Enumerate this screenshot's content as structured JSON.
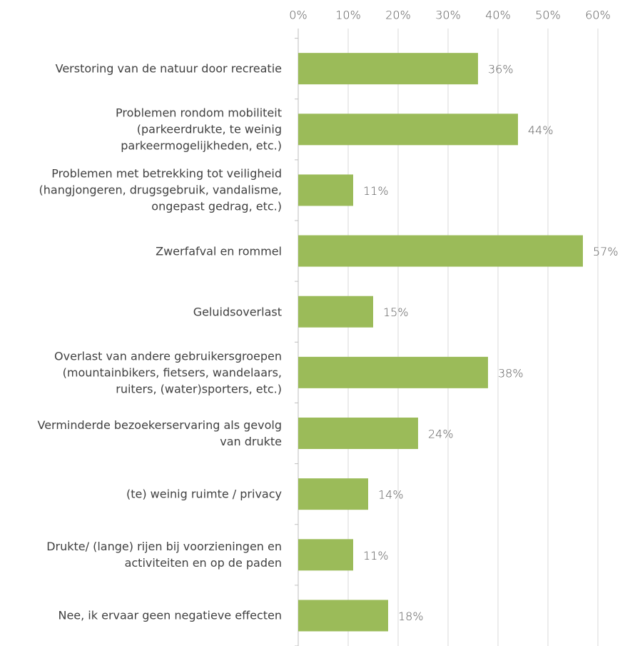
{
  "chart_data": {
    "type": "bar",
    "orientation": "horizontal",
    "categories": [
      "Verstoring van de natuur door recreatie",
      "Problemen rondom mobiliteit\n(parkeerdrukte, te weinig\nparkeermogelijkheden, etc.)",
      "Problemen met betrekking tot veiligheid\n(hangjongeren, drugsgebruik, vandalisme,\nongepast gedrag, etc.)",
      "Zwerfafval en rommel",
      "Geluidsoverlast",
      "Overlast van andere gebruikersgroepen\n(mountainbikers, fietsers, wandelaars,\nruiters, (water)sporters, etc.)",
      "Verminderde bezoekerservaring als gevolg\nvan drukte",
      "(te) weinig ruimte / privacy",
      "Drukte/ (lange) rijen bij voorzieningen en\nactiviteiten en op de paden",
      "Nee, ik ervaar geen negatieve effecten"
    ],
    "values": [
      36,
      44,
      11,
      57,
      15,
      38,
      24,
      14,
      11,
      18
    ],
    "value_labels": [
      "36%",
      "44%",
      "11%",
      "57%",
      "15%",
      "38%",
      "24%",
      "14%",
      "11%",
      "18%"
    ],
    "color": "#9bbb59",
    "xlim": [
      0,
      60
    ],
    "xticks": [
      {
        "value": 0,
        "label": "0%"
      },
      {
        "value": 10,
        "label": "10%"
      },
      {
        "value": 20,
        "label": "20%"
      },
      {
        "value": 30,
        "label": "30%"
      },
      {
        "value": 40,
        "label": "40%"
      },
      {
        "value": 50,
        "label": "50%"
      },
      {
        "value": 60,
        "label": "60%"
      }
    ],
    "grid": true
  }
}
